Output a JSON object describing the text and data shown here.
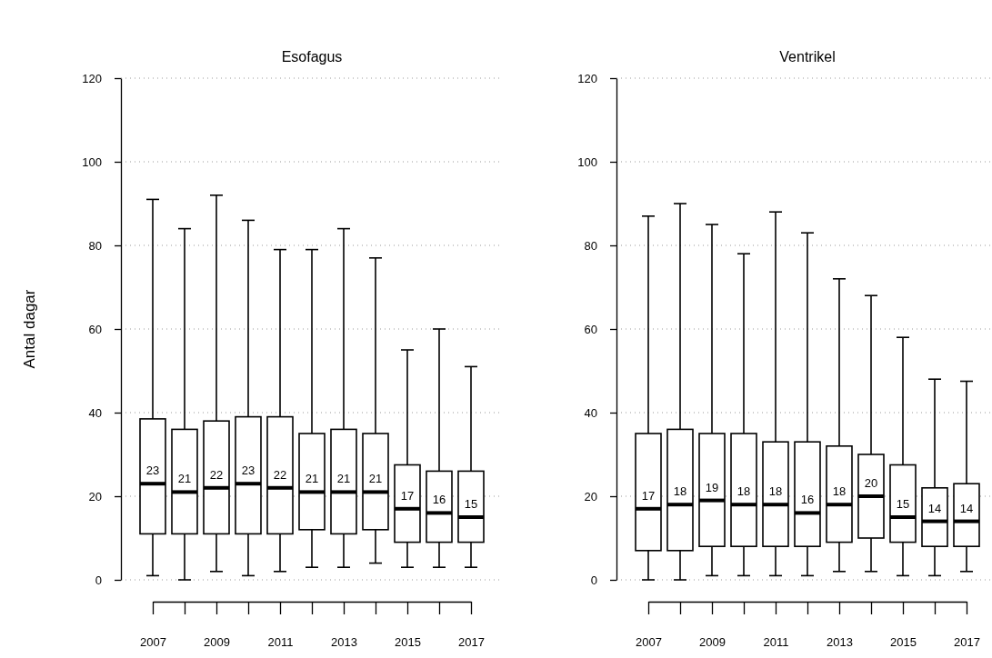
{
  "chart_data": [
    {
      "type": "box",
      "title": "Esofagus",
      "ylabel": "Antal dagar",
      "categories": [
        "2007",
        null,
        "2009",
        null,
        "2011",
        null,
        "2013",
        null,
        "2015",
        null,
        "2017"
      ],
      "boxes": [
        {
          "low": 1,
          "q1": 11,
          "median": 23,
          "q3": 38.5,
          "high": 91
        },
        {
          "low": 0,
          "q1": 11,
          "median": 21,
          "q3": 36,
          "high": 84
        },
        {
          "low": 2,
          "q1": 11,
          "median": 22,
          "q3": 38,
          "high": 92
        },
        {
          "low": 1,
          "q1": 11,
          "median": 23,
          "q3": 39,
          "high": 86
        },
        {
          "low": 2,
          "q1": 11,
          "median": 22,
          "q3": 39,
          "high": 79
        },
        {
          "low": 3,
          "q1": 12,
          "median": 21,
          "q3": 35,
          "high": 79
        },
        {
          "low": 3,
          "q1": 11,
          "median": 21,
          "q3": 36,
          "high": 84
        },
        {
          "low": 4,
          "q1": 12,
          "median": 21,
          "q3": 35,
          "high": 77
        },
        {
          "low": 3,
          "q1": 9,
          "median": 17,
          "q3": 27.5,
          "high": 55
        },
        {
          "low": 3,
          "q1": 9,
          "median": 16,
          "q3": 26,
          "high": 60
        },
        {
          "low": 3,
          "q1": 9,
          "median": 15,
          "q3": 26,
          "high": 51
        }
      ],
      "value_labels": [
        "23",
        "21",
        "22",
        "23",
        "22",
        "21",
        "21",
        "21",
        "17",
        "16",
        "15"
      ],
      "grid": "y",
      "ylim": [
        0,
        120
      ],
      "yticks": [
        0,
        20,
        40,
        60,
        80,
        100,
        120
      ]
    },
    {
      "type": "box",
      "title": "Ventrikel",
      "categories": [
        "2007",
        null,
        "2009",
        null,
        "2011",
        null,
        "2013",
        null,
        "2015",
        null,
        "2017"
      ],
      "boxes": [
        {
          "low": 0,
          "q1": 7,
          "median": 17,
          "q3": 35,
          "high": 87
        },
        {
          "low": 0,
          "q1": 7,
          "median": 18,
          "q3": 36,
          "high": 90
        },
        {
          "low": 1,
          "q1": 8,
          "median": 19,
          "q3": 35,
          "high": 85
        },
        {
          "low": 1,
          "q1": 8,
          "median": 18,
          "q3": 35,
          "high": 78
        },
        {
          "low": 1,
          "q1": 8,
          "median": 18,
          "q3": 33,
          "high": 88
        },
        {
          "low": 1,
          "q1": 8,
          "median": 16,
          "q3": 33,
          "high": 83
        },
        {
          "low": 2,
          "q1": 9,
          "median": 18,
          "q3": 32,
          "high": 72
        },
        {
          "low": 2,
          "q1": 10,
          "median": 20,
          "q3": 30,
          "high": 68
        },
        {
          "low": 1,
          "q1": 9,
          "median": 15,
          "q3": 27.5,
          "high": 58
        },
        {
          "low": 1,
          "q1": 8,
          "median": 14,
          "q3": 22,
          "high": 48
        },
        {
          "low": 2,
          "q1": 8,
          "median": 14,
          "q3": 23,
          "high": 47.5
        }
      ],
      "value_labels": [
        "17",
        "18",
        "19",
        "18",
        "18",
        "16",
        "18",
        "20",
        "15",
        "14",
        "14"
      ],
      "grid": "y",
      "ylim": [
        0,
        120
      ],
      "yticks": [
        0,
        20,
        40,
        60,
        80,
        100,
        120
      ]
    }
  ]
}
